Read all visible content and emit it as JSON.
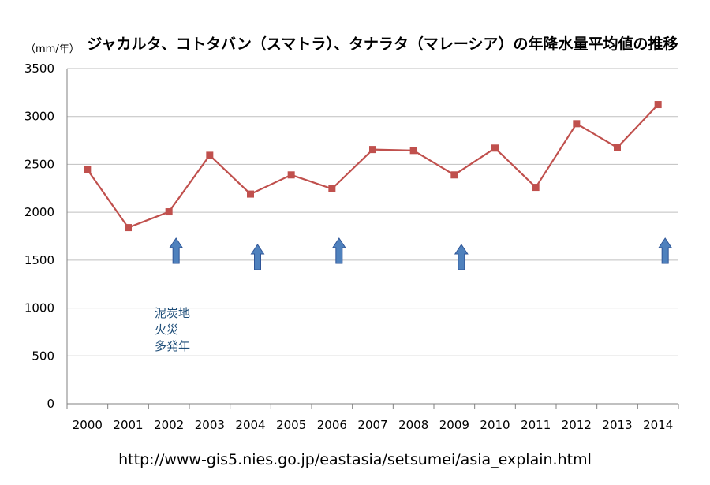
{
  "chart_data": {
    "type": "line",
    "title": "ジャカルタ、コトタバン（スマトラ）、タナラタ（マレーシア）の年降水量平均値の推移",
    "y_unit": "（mm/年）",
    "xlabel": "",
    "ylabel": "",
    "x": [
      "2000",
      "2001",
      "2002",
      "2003",
      "2004",
      "2005",
      "2006",
      "2007",
      "2008",
      "2009",
      "2010",
      "2011",
      "2012",
      "2013",
      "2014"
    ],
    "series": [
      {
        "values": [
          2445,
          1840,
          2005,
          2595,
          2190,
          2390,
          2245,
          2655,
          2645,
          2390,
          2670,
          2260,
          2925,
          2675,
          3125
        ],
        "color": "#c0504d"
      }
    ],
    "ylim": [
      0,
      3500
    ],
    "yticks": [
      0,
      500,
      1000,
      1500,
      2000,
      2500,
      3000,
      3500
    ],
    "grid": "horizontal",
    "annotation": {
      "lines": [
        "泥炭地",
        "火災",
        "多発年"
      ],
      "arrow_years": [
        "2002",
        "2004",
        "2006",
        "2009",
        "2014"
      ],
      "arrow_color": "#4f81bd"
    }
  },
  "source_url": "http://www-gis5.nies.go.jp/eastasia/setsumei/asia_explain.html"
}
